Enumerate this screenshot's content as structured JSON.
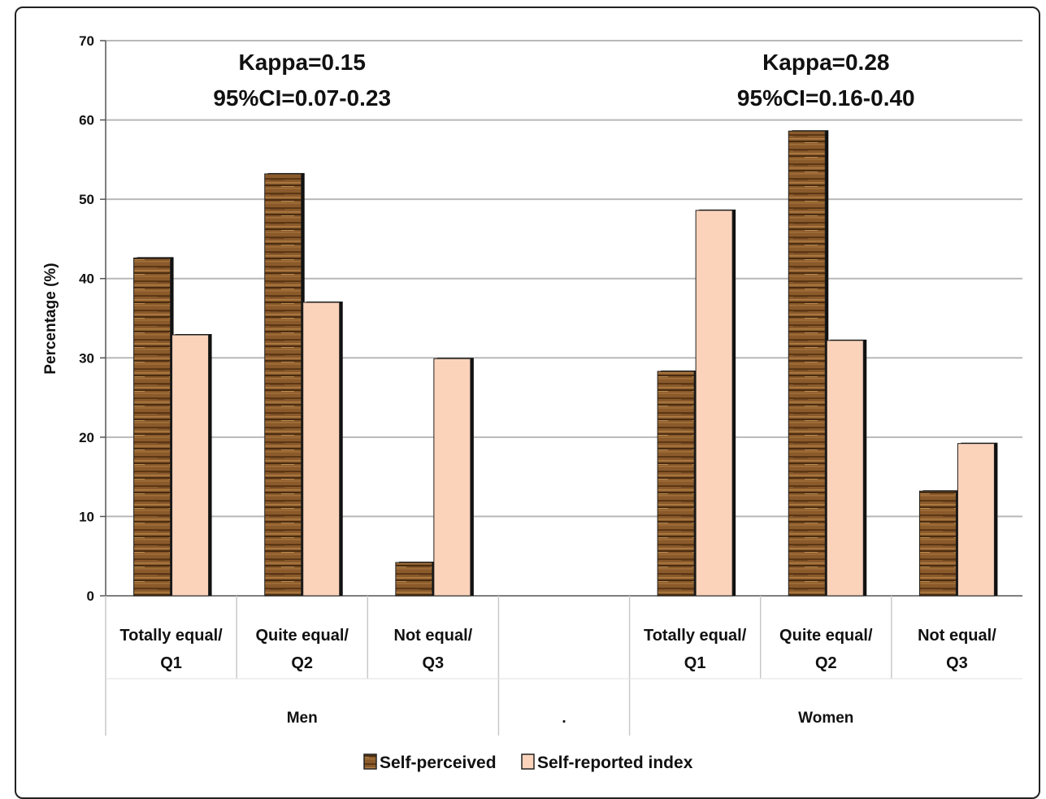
{
  "chart_data": {
    "type": "bar",
    "ylabel": "Percentage (%)",
    "ylim": [
      0,
      70
    ],
    "yticks": [
      0,
      10,
      20,
      30,
      40,
      50,
      60,
      70
    ],
    "grid": true,
    "legend_position": "bottom",
    "categories": [
      {
        "line1": "Totally equal/",
        "line2": "Q1",
        "group": "Men"
      },
      {
        "line1": "Quite equal/",
        "line2": "Q2",
        "group": "Men"
      },
      {
        "line1": "Not equal/",
        "line2": "Q3",
        "group": "Men"
      },
      {
        "line1": "",
        "line2": "",
        "group": "."
      },
      {
        "line1": "Totally equal/",
        "line2": "Q1",
        "group": "Women"
      },
      {
        "line1": "Quite equal/",
        "line2": "Q2",
        "group": "Women"
      },
      {
        "line1": "Not equal/",
        "line2": "Q3",
        "group": "Women"
      }
    ],
    "groups": [
      {
        "label": "Men",
        "span": [
          0,
          2
        ]
      },
      {
        "label": ".",
        "span": [
          3,
          3
        ]
      },
      {
        "label": "Women",
        "span": [
          4,
          6
        ]
      }
    ],
    "series": [
      {
        "name": "Self-perceived",
        "color": "#8a5a2b",
        "values": [
          42.6,
          53.2,
          4.2,
          null,
          28.3,
          58.6,
          13.2
        ]
      },
      {
        "name": "Self-reported index",
        "color": "#fbd3bb",
        "values": [
          32.9,
          37.0,
          29.9,
          null,
          48.6,
          32.2,
          19.2
        ]
      }
    ],
    "annotations": [
      {
        "line1": "Kappa=0.15",
        "line2": "95%CI=0.07-0.23",
        "group": "Men"
      },
      {
        "line1": "Kappa=0.28",
        "line2": "95%CI=0.16-0.40",
        "group": "Women"
      }
    ]
  }
}
